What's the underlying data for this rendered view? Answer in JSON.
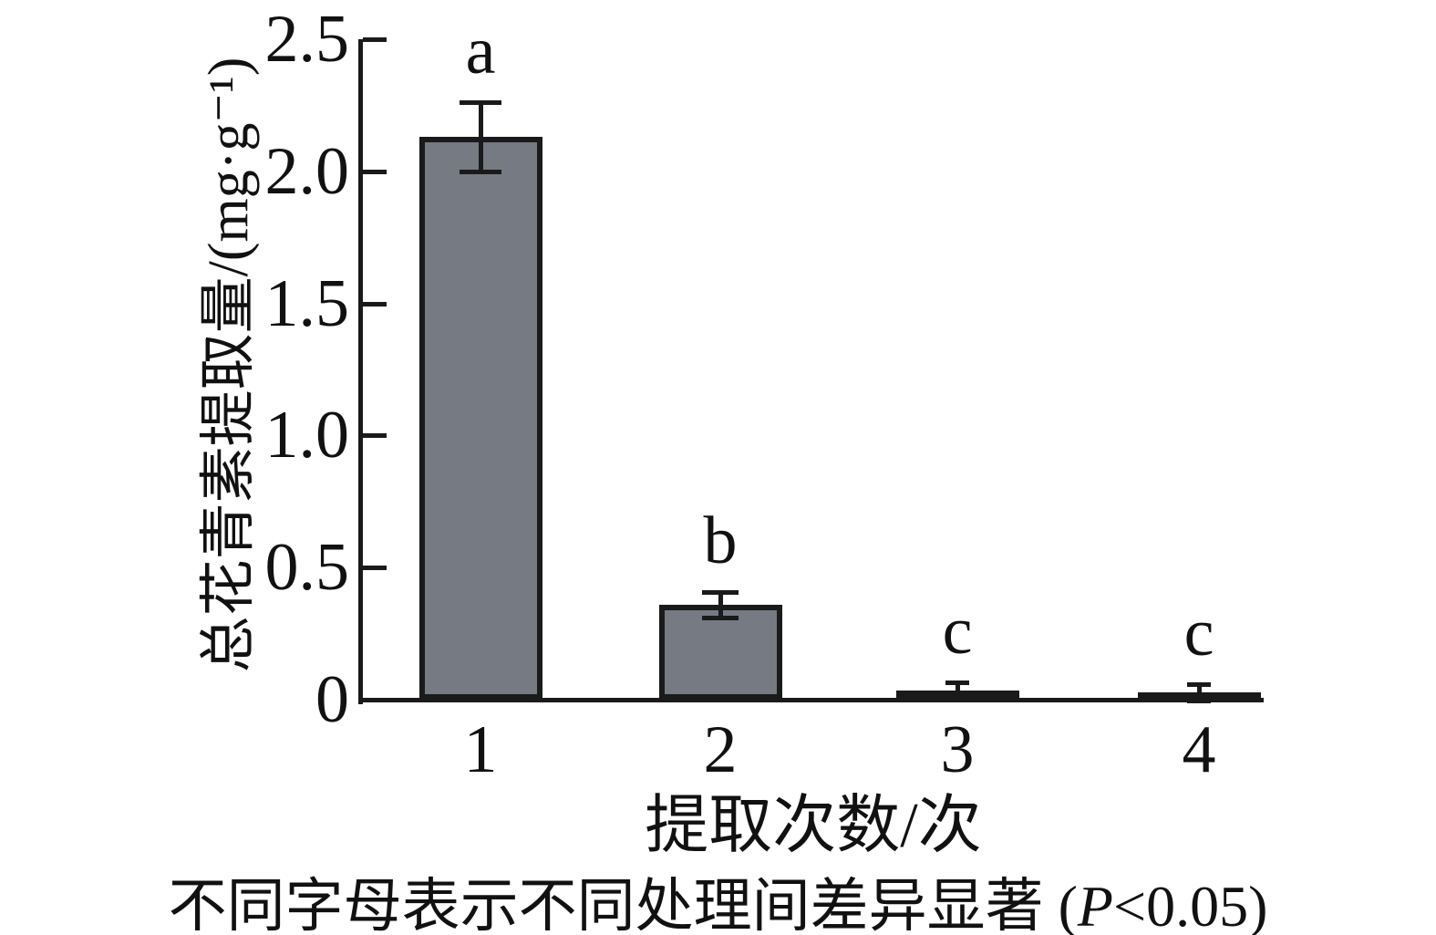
{
  "chart_data": {
    "type": "bar",
    "title": "",
    "categories": [
      "1",
      "2",
      "3",
      "4"
    ],
    "values": [
      2.13,
      0.36,
      0.02,
      0.01
    ],
    "errors": [
      0.13,
      0.05,
      0.02,
      0.02
    ],
    "sig_letters": [
      "a",
      "b",
      "c",
      "c"
    ],
    "xlabel": "提取次数/次",
    "ylabel": "总花青素提取量/(mg·g⁻¹)",
    "ylim": [
      0,
      2.5
    ],
    "yticks": [
      0,
      0.5,
      1.0,
      1.5,
      2.0,
      2.5
    ],
    "ytick_labels": [
      "0",
      "0.5",
      "1.0",
      "1.5",
      "2.0",
      "2.5"
    ],
    "bar_color": "#767A83",
    "edge_color": "#1A1A1A",
    "grid": false,
    "legend_position": "none"
  },
  "caption": {
    "prefix": "不同字母表示不同处理间差异显著 (",
    "italic": "P",
    "suffix": "<0.05)"
  }
}
